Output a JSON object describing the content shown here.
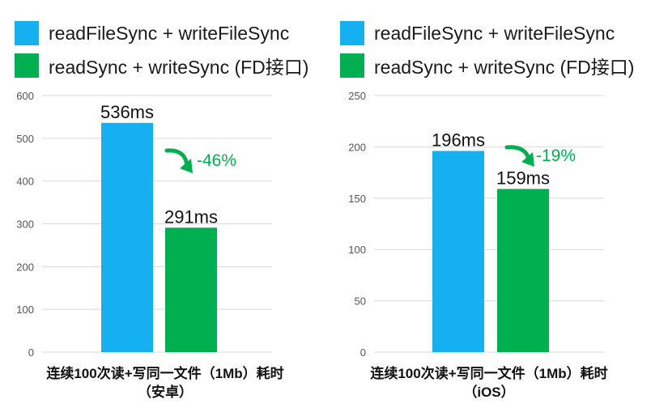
{
  "colors": {
    "blue": "#14b0ef",
    "green": "#00b050",
    "axis": "#d9d9d9"
  },
  "legend": [
    {
      "label": "readFileSync + writeFileSync",
      "color": "#14b0ef"
    },
    {
      "label": "readSync + writeSync (FD接口)",
      "color": "#00b050"
    }
  ],
  "chart_data": [
    {
      "type": "bar",
      "categories": [
        "readFileSync + writeFileSync",
        "readSync + writeSync (FD接口)"
      ],
      "values": [
        536,
        291
      ],
      "value_labels": [
        "536ms",
        "291ms"
      ],
      "ylim": [
        0,
        600
      ],
      "yticks": [
        0,
        100,
        200,
        300,
        400,
        500,
        600
      ],
      "annotation": "-46%",
      "xlabel_lines": [
        "连续100次读+写同一文件（1Mb）耗时",
        "（安卓）"
      ],
      "legend_position": "top-left"
    },
    {
      "type": "bar",
      "categories": [
        "readFileSync + writeFileSync",
        "readSync + writeSync (FD接口)"
      ],
      "values": [
        196,
        159
      ],
      "value_labels": [
        "196ms",
        "159ms"
      ],
      "ylim": [
        0,
        250
      ],
      "yticks": [
        0,
        50,
        100,
        150,
        200,
        250
      ],
      "annotation": "-19%",
      "xlabel_lines": [
        "连续100次读+写同一文件（1Mb）耗时",
        "（iOS）"
      ],
      "legend_position": "top-left"
    }
  ]
}
